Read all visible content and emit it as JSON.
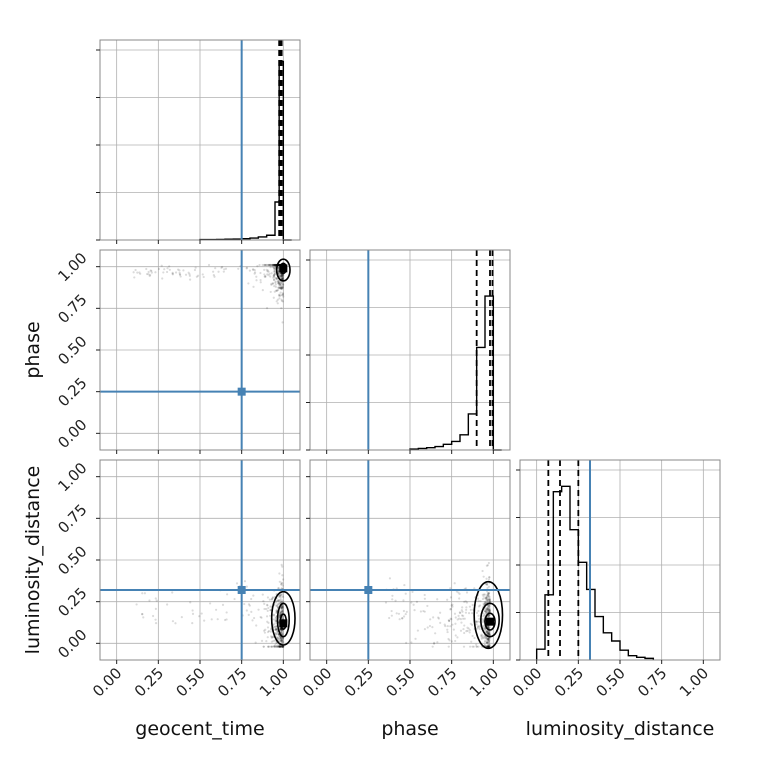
{
  "chart_data": {
    "type": "corner",
    "parameters": [
      "geocent_time",
      "phase",
      "luminosity_distance"
    ],
    "xlim": [
      -0.1,
      1.1
    ],
    "ylim": [
      -0.1,
      1.1
    ],
    "ticks": [
      "0.00",
      "0.25",
      "0.50",
      "0.75",
      "1.00"
    ],
    "tick_values": [
      0,
      0.25,
      0.5,
      0.75,
      1.0
    ],
    "grid": true,
    "truth_color": "#4682b4",
    "truths": {
      "geocent_time": 0.75,
      "phase": 0.25,
      "luminosity_distance": 0.32
    },
    "marginals": [
      {
        "parameter": "geocent_time",
        "bin_edges": [
          0.5,
          0.55,
          0.6,
          0.65,
          0.7,
          0.75,
          0.8,
          0.85,
          0.9,
          0.95,
          0.975,
          1.0,
          1.05
        ],
        "counts": [
          0.2,
          0.25,
          0.3,
          0.4,
          0.5,
          0.7,
          1.0,
          1.6,
          2.5,
          20,
          94,
          0
        ],
        "ymax": 100,
        "quantiles": [
          0.975,
          0.985,
          0.99
        ]
      },
      {
        "parameter": "phase",
        "bin_edges": [
          0.5,
          0.55,
          0.6,
          0.65,
          0.7,
          0.75,
          0.8,
          0.85,
          0.9,
          0.95,
          1.0,
          1.05
        ],
        "counts": [
          0.5,
          0.8,
          1.2,
          1.8,
          3,
          4.5,
          8,
          19,
          54,
          81,
          0
        ],
        "ymax": 100,
        "quantiles": [
          0.9,
          0.98,
          0.995
        ]
      },
      {
        "parameter": "luminosity_distance",
        "bin_edges": [
          0.0,
          0.05,
          0.1,
          0.15,
          0.2,
          0.25,
          0.3,
          0.35,
          0.4,
          0.45,
          0.5,
          0.55,
          0.6,
          0.65,
          0.7
        ],
        "counts": [
          2,
          12,
          31,
          32,
          24,
          18,
          13,
          8,
          5,
          3.5,
          1.8,
          0.8,
          0.5,
          0.3
        ],
        "ymax": 35,
        "quantiles": [
          0.07,
          0.14,
          0.25
        ]
      }
    ],
    "joint": [
      {
        "x": "geocent_time",
        "y": "phase",
        "mode": [
          1.0,
          0.99
        ],
        "contours": [
          {
            "cx": 1.0,
            "cy": 0.98,
            "rx": 0.04,
            "ry": 0.065
          },
          {
            "cx": 1.0,
            "cy": 0.99,
            "rx": 0.018,
            "ry": 0.03
          }
        ]
      },
      {
        "x": "geocent_time",
        "y": "luminosity_distance",
        "mode": [
          1.0,
          0.12
        ],
        "contours": [
          {
            "cx": 1.0,
            "cy": 0.15,
            "rx": 0.07,
            "ry": 0.16
          },
          {
            "cx": 1.0,
            "cy": 0.14,
            "rx": 0.035,
            "ry": 0.1
          },
          {
            "cx": 1.0,
            "cy": 0.13,
            "rx": 0.018,
            "ry": 0.045
          }
        ]
      },
      {
        "x": "phase",
        "y": "luminosity_distance",
        "mode": [
          0.98,
          0.13
        ],
        "contours": [
          {
            "cx": 0.97,
            "cy": 0.17,
            "rx": 0.085,
            "ry": 0.2
          },
          {
            "cx": 0.98,
            "cy": 0.14,
            "rx": 0.055,
            "ry": 0.1
          },
          {
            "cx": 0.98,
            "cy": 0.13,
            "rx": 0.03,
            "ry": 0.05
          }
        ]
      }
    ]
  }
}
